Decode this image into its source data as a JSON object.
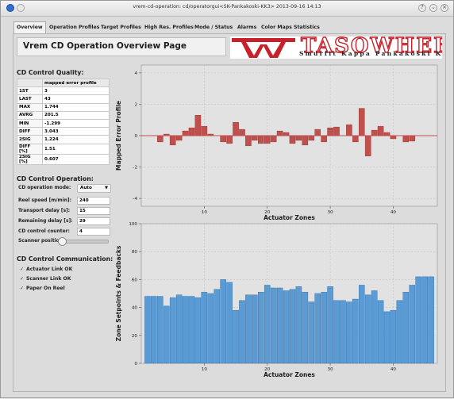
{
  "window": {
    "title": "vrem-cd-operation: cd/operatorgui<SK-Pankakoski-KK3> 2013-09-16 14:13"
  },
  "tabs": [
    {
      "label": "Overview"
    },
    {
      "label": "Operation Profiles"
    },
    {
      "label": "Target Profiles"
    },
    {
      "label": "High Res. Profiles"
    },
    {
      "label": "Mode / Status"
    },
    {
      "label": "Alarms"
    },
    {
      "label": "Color Maps"
    },
    {
      "label": "Statistics"
    }
  ],
  "page_title": "Vrem CD Operation Overview Page",
  "logo": {
    "main": "TASOWHEEL",
    "sub": "Smurfit Kappa Pankakoski KK3",
    "accent": "#c7212b"
  },
  "quality": {
    "title": "CD Control Quality:",
    "column_header": "mapped error profile",
    "rows": [
      {
        "label": "1ST",
        "value": "3"
      },
      {
        "label": "LAST",
        "value": "43"
      },
      {
        "label": "MAX",
        "value": "1.744"
      },
      {
        "label": "AVRG",
        "value": "201.5"
      },
      {
        "label": "MIN",
        "value": "-1.299"
      },
      {
        "label": "DIFF",
        "value": "3.043"
      },
      {
        "label": "2SIG",
        "value": "1.224"
      },
      {
        "label": "DIFF [%]",
        "value": "1.51"
      },
      {
        "label": "2SIG [%]",
        "value": "0.607"
      }
    ]
  },
  "operation": {
    "title": "CD Control Operation:",
    "mode_label": "CD operation mode:",
    "mode_value": "Auto",
    "reel_speed_label": "Reel speed [m/min]:",
    "reel_speed_value": "240",
    "transport_delay_label": "Transport delay [s]:",
    "transport_delay_value": "15",
    "remaining_delay_label": "Remaining delay [s]:",
    "remaining_delay_value": "29",
    "counter_label": "CD control counter:",
    "counter_value": "4",
    "scanner_label": "Scanner position:",
    "scanner_position": 0.0
  },
  "communication": {
    "title": "CD Control Communication:",
    "items": [
      {
        "label": "Actuator Link OK"
      },
      {
        "label": "Scanner Link OK"
      },
      {
        "label": "Paper On Reel"
      }
    ]
  },
  "chart_data": [
    {
      "type": "bar",
      "ylabel": "Mapped Error Profile",
      "xlabel": "Actuator Zones",
      "ylim": [
        -4.5,
        4.5
      ],
      "xlim": [
        0,
        47
      ],
      "yticks": [
        -4,
        -2,
        0,
        2,
        4
      ],
      "xticks": [
        10,
        20,
        30,
        40
      ],
      "grid": true,
      "color": "#c0504d",
      "x": [
        3,
        4,
        5,
        6,
        7,
        8,
        9,
        10,
        11,
        12,
        13,
        14,
        15,
        16,
        17,
        18,
        19,
        20,
        21,
        22,
        23,
        24,
        25,
        26,
        27,
        28,
        29,
        30,
        31,
        32,
        33,
        34,
        35,
        36,
        37,
        38,
        39,
        40,
        41,
        42,
        43
      ],
      "values": [
        -0.4,
        0.1,
        -0.6,
        -0.3,
        0.3,
        0.5,
        1.3,
        0.6,
        0.1,
        0.0,
        -0.4,
        -0.5,
        0.85,
        0.4,
        -0.65,
        -0.3,
        -0.5,
        -0.5,
        -0.4,
        0.3,
        0.2,
        -0.5,
        -0.3,
        -0.6,
        -0.3,
        0.4,
        -0.4,
        0.5,
        0.55,
        0.0,
        0.7,
        -0.4,
        1.74,
        -1.3,
        0.35,
        0.6,
        0.2,
        -0.2,
        0.0,
        -0.4,
        -0.35
      ]
    },
    {
      "type": "bar",
      "ylabel": "Zone Setpoints & Feedbacks",
      "xlabel": "Actuator Zones",
      "ylim": [
        0,
        100
      ],
      "xlim": [
        0,
        47
      ],
      "yticks": [
        0,
        20,
        40,
        60,
        80,
        100
      ],
      "xticks": [
        10,
        20,
        30,
        40
      ],
      "grid": true,
      "color": "#5b9bd5",
      "x": [
        1,
        2,
        3,
        4,
        5,
        6,
        7,
        8,
        9,
        10,
        11,
        12,
        13,
        14,
        15,
        16,
        17,
        18,
        19,
        20,
        21,
        22,
        23,
        24,
        25,
        26,
        27,
        28,
        29,
        30,
        31,
        32,
        33,
        34,
        35,
        36,
        37,
        38,
        39,
        40,
        41,
        42,
        43,
        44,
        45,
        46
      ],
      "values": [
        48,
        48,
        48,
        41,
        47,
        49,
        48,
        48,
        47,
        51,
        50,
        53,
        60,
        58,
        38,
        45,
        49,
        49,
        51,
        56,
        54,
        54,
        52,
        53,
        55,
        51,
        44,
        50,
        51,
        55,
        45,
        45,
        44,
        46,
        56,
        49,
        52,
        45,
        37,
        38,
        45,
        51,
        56,
        62,
        62,
        62
      ]
    }
  ]
}
